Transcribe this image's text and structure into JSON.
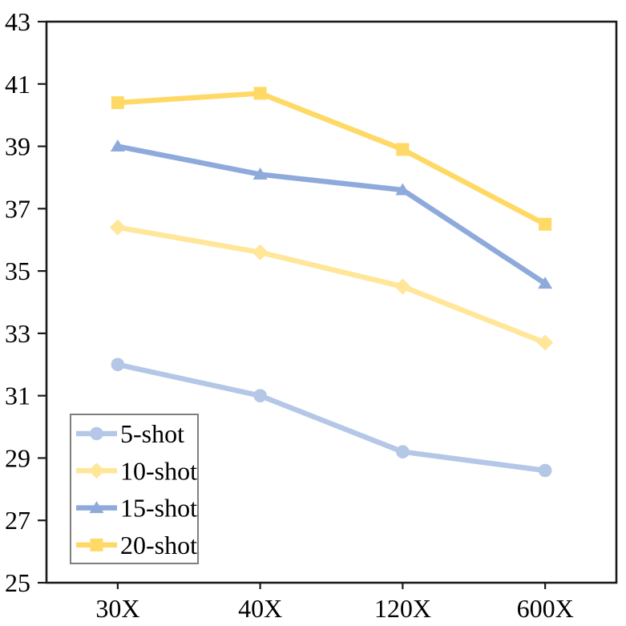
{
  "chart_data": {
    "type": "line",
    "title": "",
    "categories": [
      "30X",
      "40X",
      "120X",
      "600X"
    ],
    "series": [
      {
        "name": "5-shot",
        "marker": "circle",
        "color": "#b4c7e7",
        "values": [
          32.0,
          31.0,
          29.2,
          28.6
        ]
      },
      {
        "name": "10-shot",
        "marker": "diamond",
        "color": "#ffe699",
        "values": [
          36.4,
          35.6,
          34.5,
          32.7
        ]
      },
      {
        "name": "15-shot",
        "marker": "triangle",
        "color": "#8eaadb",
        "values": [
          39.0,
          38.1,
          37.6,
          34.6
        ]
      },
      {
        "name": "20-shot",
        "marker": "square",
        "color": "#ffd966",
        "values": [
          40.4,
          40.7,
          38.9,
          36.5
        ]
      }
    ],
    "ylim": [
      25,
      43
    ],
    "yticks": [
      25,
      27,
      29,
      31,
      33,
      35,
      37,
      39,
      41,
      43
    ],
    "grid": false,
    "legend": {
      "position": "lower-left",
      "entries": [
        "5-shot",
        "10-shot",
        "15-shot",
        "20-shot"
      ]
    },
    "axis_color": "#1a1a1a",
    "legend_border_color": "#7f7f7f",
    "legend_background": "#ffffff"
  }
}
